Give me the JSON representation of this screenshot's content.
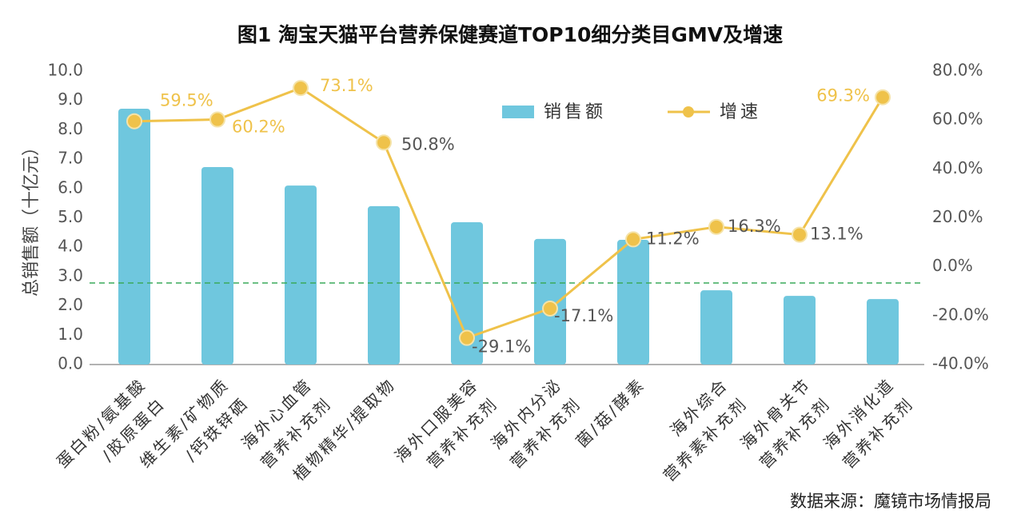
{
  "chart_data": {
    "type": "bar_line",
    "title": "图1 淘宝天猫平台营养保健赛道TOP10细分类目GMV及增速",
    "y_label": "总销售额（十亿元）",
    "source": "数据来源：魔镜市场情报局",
    "categories": [
      [
        "蛋白粉/氨基酸",
        "/胶原蛋白"
      ],
      [
        "维生素/矿物质",
        "/钙铁锌硒"
      ],
      [
        "海外心血管",
        "营养补充剂"
      ],
      [
        "植物精华/提取物"
      ],
      [
        "海外口服美容",
        "营养补充剂"
      ],
      [
        "海外内分泌",
        "营养补充剂"
      ],
      [
        "菌/菇/酵素"
      ],
      [
        "海外综合",
        "营养素补充剂"
      ],
      [
        "海外骨关节",
        "营养补充剂"
      ],
      [
        "海外消化道",
        "营养补充剂"
      ]
    ],
    "series": [
      {
        "name": "销售额",
        "color": "#6fc7de",
        "values": [
          8.72,
          6.73,
          6.1,
          5.4,
          4.85,
          4.28,
          4.25,
          2.53,
          2.34,
          2.23
        ]
      },
      {
        "name": "增速",
        "color": "#efc24a",
        "axis": "y2",
        "values": [
          59.5,
          60.2,
          73.1,
          50.8,
          -29.1,
          -17.1,
          11.2,
          16.3,
          13.1,
          69.3
        ],
        "value_labels": [
          "59.5%",
          "60.2%",
          "73.1%",
          "50.8%",
          "-29.1%",
          "-17.1%",
          "11.2%",
          "16.3%",
          "13.1%",
          "69.3%"
        ],
        "value_label_colors": [
          "#efc24a",
          "#efc24a",
          "#efc24a",
          "#555555",
          "#555555",
          "#555555",
          "#555555",
          "#555555",
          "#555555",
          "#efc24a"
        ]
      }
    ],
    "ylim": [
      0,
      10
    ],
    "yticks": [
      {
        "value": 0,
        "label": "0.0"
      },
      {
        "value": 1,
        "label": "1.0"
      },
      {
        "value": 2,
        "label": "2.0"
      },
      {
        "value": 3,
        "label": "3.0"
      },
      {
        "value": 4,
        "label": "4.0"
      },
      {
        "value": 5,
        "label": "5.0"
      },
      {
        "value": 6,
        "label": "6.0"
      },
      {
        "value": 7,
        "label": "7.0"
      },
      {
        "value": 8,
        "label": "8.0"
      },
      {
        "value": 9,
        "label": "9.0"
      },
      {
        "value": 10,
        "label": "10.0"
      }
    ],
    "y2lim": [
      -40,
      80
    ],
    "y2ticks": [
      {
        "value": -40,
        "label": "-40.0%"
      },
      {
        "value": -20,
        "label": "-20.0%"
      },
      {
        "value": 0,
        "label": "0.0%"
      },
      {
        "value": 20,
        "label": "20.0%"
      },
      {
        "value": 40,
        "label": "40.0%"
      },
      {
        "value": 60,
        "label": "60.0%"
      },
      {
        "value": 80,
        "label": "80.0%"
      }
    ],
    "reference_line": {
      "value": 2.78,
      "color": "#3aaa5a"
    },
    "grid": false,
    "legend": "top"
  }
}
